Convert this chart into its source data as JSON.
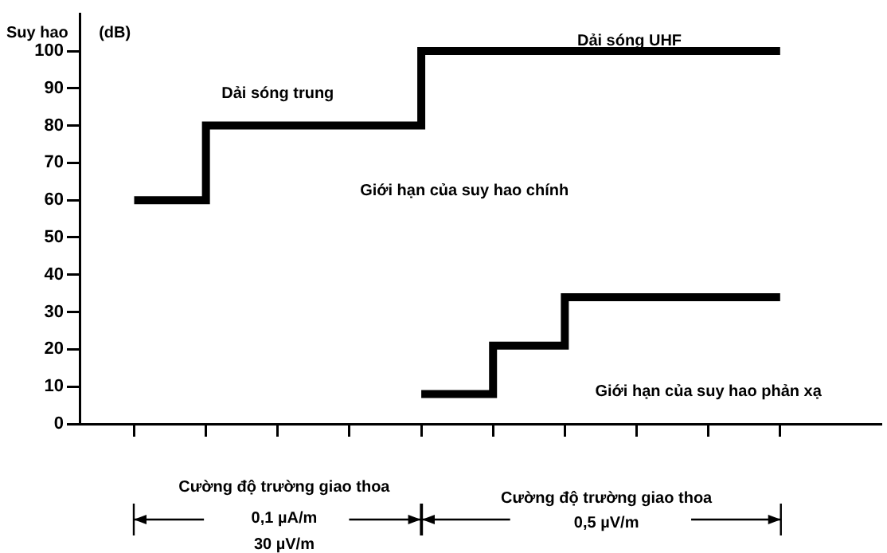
{
  "chart_data": {
    "type": "step",
    "ylabel": "Suy hao",
    "categories": [
      null,
      null,
      null,
      null,
      null,
      null,
      null,
      null,
      null,
      null
    ],
    "ylim": [
      0,
      110
    ],
    "yticks": [
      0,
      10,
      20,
      30,
      40,
      50,
      60,
      70,
      80,
      90,
      100
    ],
    "series": [
      {
        "color": "#000000",
        "values": [
          60,
          80,
          80,
          80,
          100,
          100,
          100,
          100,
          100,
          100
        ]
      },
      {
        "color": "#000000",
        "values": [
          null,
          null,
          null,
          null,
          8,
          21,
          34,
          34,
          34,
          34
        ]
      }
    ],
    "annotations": [
      "(dB)",
      "Dải sóng trung",
      "Dải sóng UHF",
      "Cường độ trường giao thoa",
      "0,1 µA/m",
      "30 µV/m",
      "Cường độ trường giao thoa",
      "0,5 µV/m",
      "Giới hạn của suy hao chính",
      "Giới hạn của suy hao phản xạ"
    ],
    "grid": false,
    "legend": false,
    "marker": "none",
    "line_style": "solid"
  }
}
